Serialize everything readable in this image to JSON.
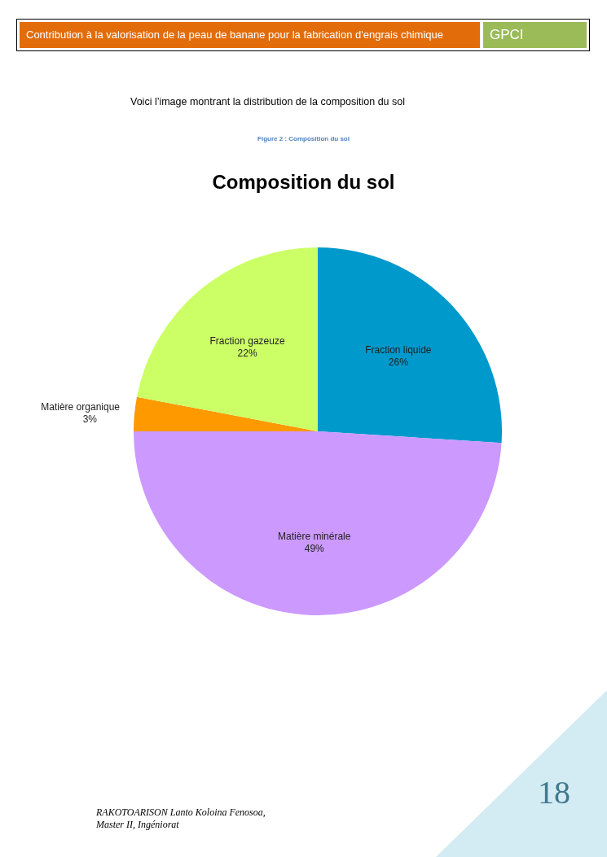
{
  "chart_data": {
    "type": "pie",
    "title": "Composition du sol",
    "categories": [
      "Fraction liquide",
      "Matière minérale",
      "Matière organique",
      "Fraction gazeuze"
    ],
    "values": [
      26,
      49,
      3,
      22
    ],
    "colors": [
      "#0099cc",
      "#cc99ff",
      "#ff9900",
      "#ccff66"
    ],
    "value_labels": [
      "26%",
      "49%",
      "3%",
      "22%"
    ],
    "annotations": [
      "Contribution à la valorisation de la peau de banane pour la fabrication d'engrais chimique",
      "GPCI",
      "Voici l’image montrant la distribution de la composition du sol",
      "Figure 2 : Composition du sol",
      "RAKOTOARISON Lanto Koloina Fenosoa,",
      "Master II, Ingéniorat",
      "18"
    ]
  }
}
